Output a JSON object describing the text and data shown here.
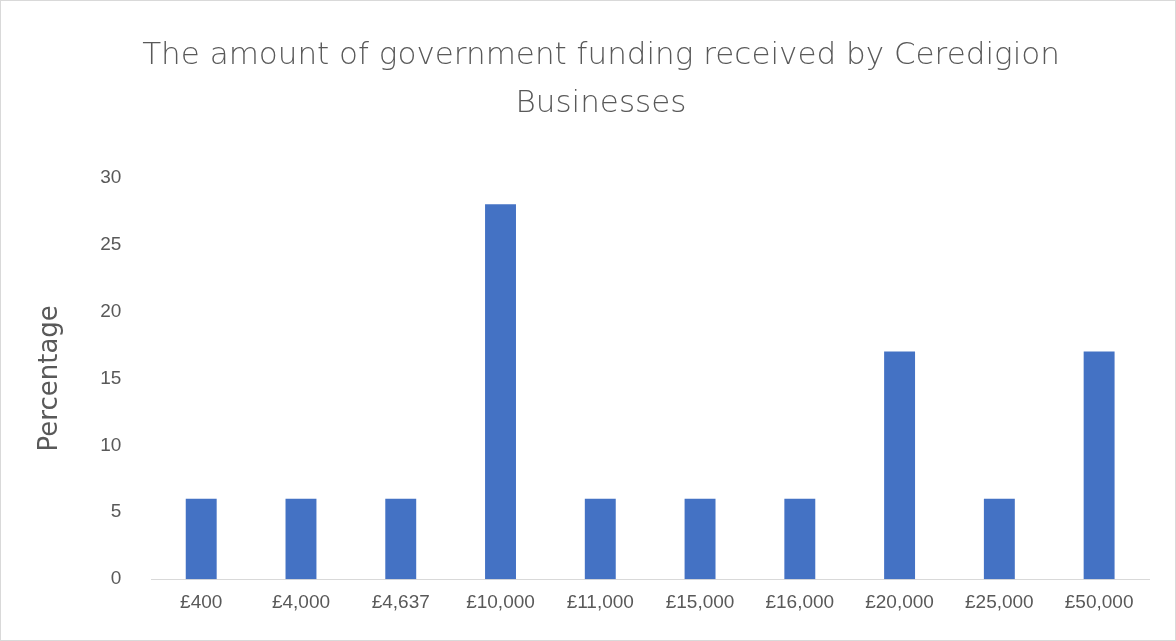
{
  "chart_data": {
    "type": "bar",
    "title": "The amount of government funding received by Ceredigion Businesses",
    "ylabel": "Percentage",
    "categories": [
      "£400",
      "£4,000",
      "£4,637",
      "£10,000",
      "£11,000",
      "£15,000",
      "£16,000",
      "£20,000",
      "£25,000",
      "£50,000"
    ],
    "values": [
      6,
      6,
      6,
      28,
      6,
      6,
      6,
      17,
      6,
      17
    ],
    "color": "#4472c4",
    "ylim": [
      0,
      30
    ],
    "yticks": [
      0,
      5,
      10,
      15,
      20,
      25,
      30
    ],
    "grid": false,
    "legend": false
  }
}
